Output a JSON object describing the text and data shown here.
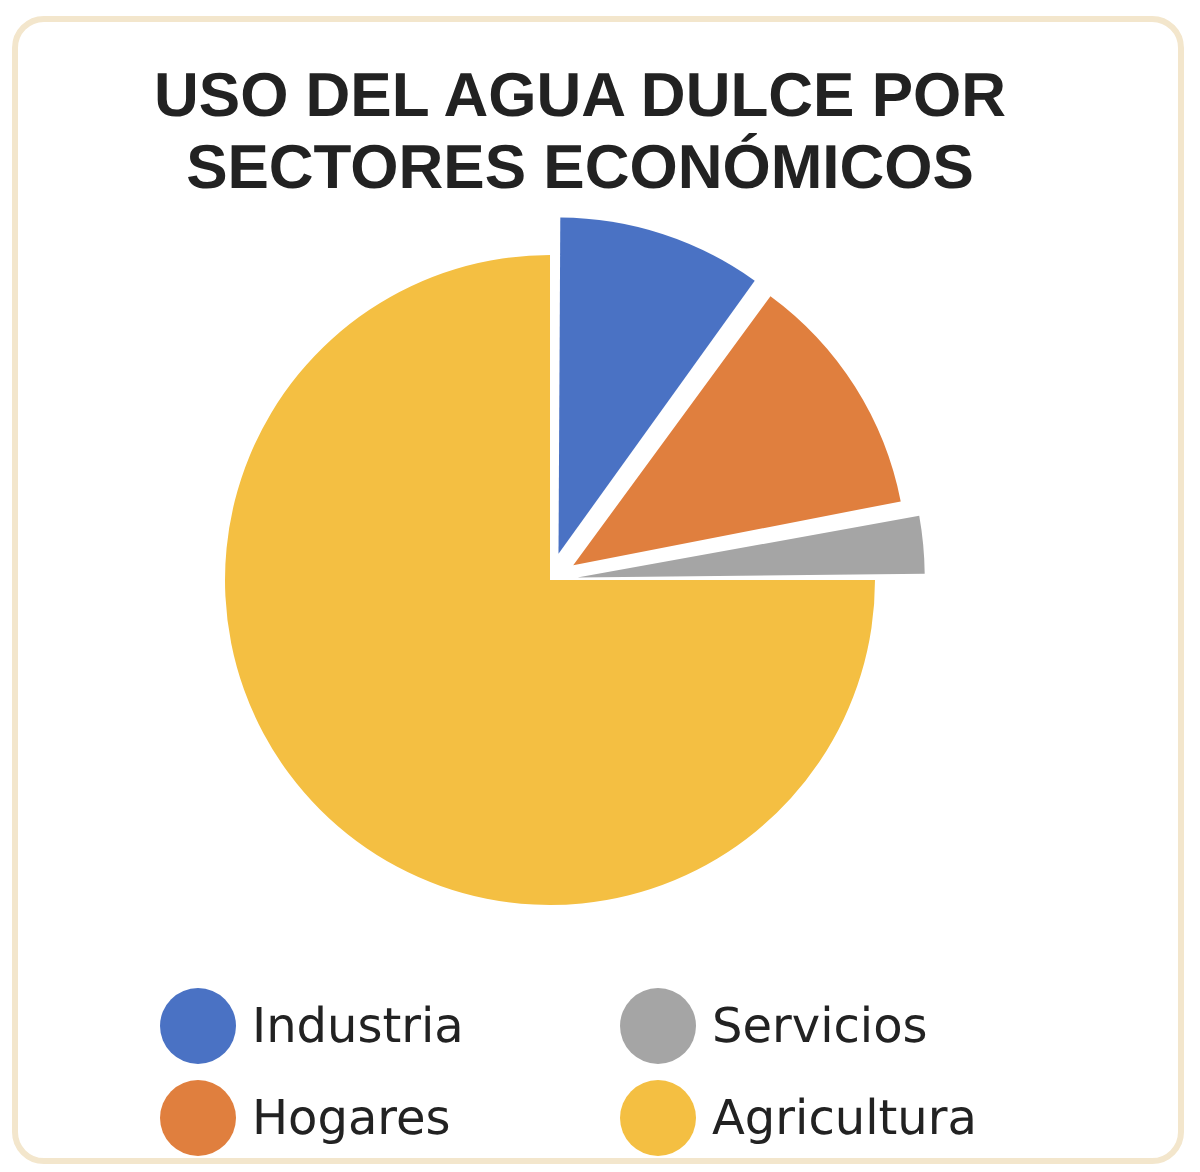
{
  "chart_data": {
    "type": "pie",
    "title": "USO DEL AGUA DULCE POR SECTORES ECONÓMICOS",
    "categories": [
      "Industria",
      "Hogares",
      "Servicios",
      "Agricultura"
    ],
    "values": [
      10,
      12,
      3,
      75
    ],
    "colors": [
      "#4a72c4",
      "#e07f3e",
      "#a5a5a5",
      "#f4bf42"
    ],
    "legend": "bottom"
  }
}
